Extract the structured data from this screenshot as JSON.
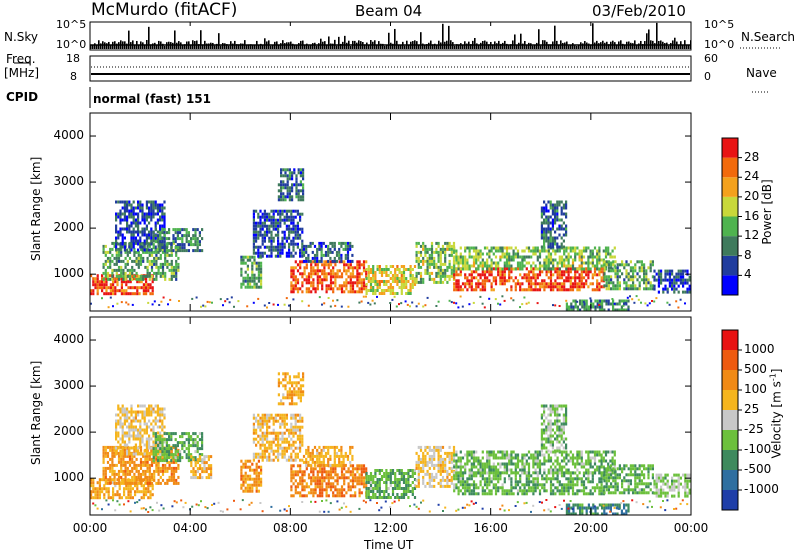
{
  "header": {
    "station": "McMurdo (fitACF)",
    "beam": "Beam 04",
    "date": "03/Feb/2010"
  },
  "noise_panel": {
    "left_label": "N.Sky",
    "right_label": "N.Search",
    "ticks": [
      "10^5",
      "10^0"
    ],
    "log_scale": true
  },
  "freq_panel": {
    "left_label_line1": "Freq.",
    "left_label_line2": "[MHz]",
    "right_label": "Nave",
    "left_ticks": [
      18,
      8
    ],
    "right_ticks": [
      60,
      0
    ]
  },
  "cpid_panel": {
    "label": "CPID",
    "value": "normal (fast) 151"
  },
  "power_panel": {
    "ylabel": "Slant Range [km]",
    "y_ticks": [
      1000,
      2000,
      3000,
      4000
    ],
    "colorbar_label": "Power [dB]",
    "colorbar_ticks": [
      "28",
      "24",
      "20",
      "16",
      "12",
      "8",
      "4"
    ],
    "colors": [
      "#0000ff",
      "#203c9e",
      "#3f7a5c",
      "#4fb34f",
      "#c8d83a",
      "#f4a11c",
      "#f26a0c",
      "#e81414"
    ]
  },
  "velocity_panel": {
    "ylabel": "Slant Range [km]",
    "y_ticks": [
      1000,
      2000,
      3000,
      4000
    ],
    "colorbar_label": "Velocity [m s",
    "colorbar_unit_exp": "-1",
    "colorbar_label_end": "]",
    "colorbar_ticks": [
      "1000",
      "500",
      "100",
      "25",
      "-25",
      "-100",
      "-500",
      "-1000"
    ],
    "colors": [
      "#1f3ea8",
      "#2f6fa0",
      "#3e8a5e",
      "#6cc03c",
      "#c8c8c8",
      "#f5b51e",
      "#f18a15",
      "#ee5a10",
      "#e81212"
    ]
  },
  "xaxis": {
    "label": "Time UT",
    "ticks": [
      "00:00",
      "04:00",
      "08:00",
      "12:00",
      "16:00",
      "20:00",
      "00:00"
    ]
  },
  "chart_data": [
    {
      "type": "heatmap",
      "title": "Power",
      "xlabel": "Time UT",
      "ylabel": "Slant Range [km]",
      "xlim_hours": [
        0,
        24
      ],
      "ylim": [
        200,
        4500
      ],
      "color_unit": "dB",
      "color_range": [
        0,
        30
      ],
      "bands": [
        {
          "t_start": 0.0,
          "t_end": 2.5,
          "r_low": 600,
          "r_high": 1000,
          "value": 26
        },
        {
          "t_start": 0.5,
          "t_end": 3.5,
          "r_low": 900,
          "r_high": 1700,
          "value": 12
        },
        {
          "t_start": 1.0,
          "t_end": 3.0,
          "r_low": 1500,
          "r_high": 2600,
          "value": 6
        },
        {
          "t_start": 2.5,
          "t_end": 4.5,
          "r_low": 1500,
          "r_high": 2000,
          "value": 10
        },
        {
          "t_start": 6.0,
          "t_end": 6.8,
          "r_low": 700,
          "r_high": 1400,
          "value": 12
        },
        {
          "t_start": 6.5,
          "t_end": 8.5,
          "r_low": 1400,
          "r_high": 2400,
          "value": 6
        },
        {
          "t_start": 7.5,
          "t_end": 8.5,
          "r_low": 2600,
          "r_high": 3300,
          "value": 8
        },
        {
          "t_start": 8.0,
          "t_end": 11.0,
          "r_low": 600,
          "r_high": 1300,
          "value": 25
        },
        {
          "t_start": 8.5,
          "t_end": 10.5,
          "r_low": 1300,
          "r_high": 1700,
          "value": 7
        },
        {
          "t_start": 11.0,
          "t_end": 13.0,
          "r_low": 600,
          "r_high": 1200,
          "value": 18
        },
        {
          "t_start": 13.0,
          "t_end": 14.5,
          "r_low": 800,
          "r_high": 1700,
          "value": 14
        },
        {
          "t_start": 14.5,
          "t_end": 20.5,
          "r_low": 650,
          "r_high": 1150,
          "value": 26
        },
        {
          "t_start": 14.5,
          "t_end": 21.0,
          "r_low": 1100,
          "r_high": 1600,
          "value": 14
        },
        {
          "t_start": 18.0,
          "t_end": 19.0,
          "r_low": 1600,
          "r_high": 2600,
          "value": 8
        },
        {
          "t_start": 20.5,
          "t_end": 22.5,
          "r_low": 700,
          "r_high": 1300,
          "value": 12
        },
        {
          "t_start": 22.5,
          "t_end": 24.0,
          "r_low": 600,
          "r_high": 1100,
          "value": 6
        },
        {
          "t_start": 19.0,
          "t_end": 21.5,
          "r_low": 250,
          "r_high": 450,
          "value": 10
        }
      ]
    },
    {
      "type": "heatmap",
      "title": "Velocity",
      "xlabel": "Time UT",
      "ylabel": "Slant Range [km]",
      "xlim_hours": [
        0,
        24
      ],
      "ylim": [
        200,
        4500
      ],
      "color_unit": "m s^-1",
      "color_range": [
        -1000,
        1000
      ],
      "bands": [
        {
          "t_start": 0.0,
          "t_end": 2.5,
          "r_low": 600,
          "r_high": 1000,
          "value": 300
        },
        {
          "t_start": 0.5,
          "t_end": 3.5,
          "r_low": 900,
          "r_high": 1700,
          "value": 400
        },
        {
          "t_start": 1.0,
          "t_end": 3.0,
          "r_low": 1500,
          "r_high": 2600,
          "value": 150
        },
        {
          "t_start": 2.5,
          "t_end": 4.5,
          "r_low": 1400,
          "r_high": 2000,
          "value": -300
        },
        {
          "t_start": 4.0,
          "t_end": 4.8,
          "r_low": 1000,
          "r_high": 1500,
          "value": 200
        },
        {
          "t_start": 6.0,
          "t_end": 6.8,
          "r_low": 700,
          "r_high": 1400,
          "value": 400
        },
        {
          "t_start": 6.5,
          "t_end": 8.5,
          "r_low": 1400,
          "r_high": 2400,
          "value": 200
        },
        {
          "t_start": 7.5,
          "t_end": 8.5,
          "r_low": 2600,
          "r_high": 3300,
          "value": 300
        },
        {
          "t_start": 8.0,
          "t_end": 11.0,
          "r_low": 600,
          "r_high": 1300,
          "value": 500
        },
        {
          "t_start": 8.5,
          "t_end": 10.5,
          "r_low": 1300,
          "r_high": 1700,
          "value": 300
        },
        {
          "t_start": 11.0,
          "t_end": 13.0,
          "r_low": 600,
          "r_high": 1200,
          "value": -300
        },
        {
          "t_start": 13.0,
          "t_end": 14.5,
          "r_low": 800,
          "r_high": 1700,
          "value": 150
        },
        {
          "t_start": 14.5,
          "t_end": 20.5,
          "r_low": 650,
          "r_high": 1150,
          "value": -300
        },
        {
          "t_start": 14.5,
          "t_end": 21.0,
          "r_low": 1100,
          "r_high": 1600,
          "value": -250
        },
        {
          "t_start": 18.0,
          "t_end": 19.0,
          "r_low": 1600,
          "r_high": 2600,
          "value": -200
        },
        {
          "t_start": 20.5,
          "t_end": 22.5,
          "r_low": 700,
          "r_high": 1300,
          "value": -300
        },
        {
          "t_start": 22.5,
          "t_end": 24.0,
          "r_low": 600,
          "r_high": 1100,
          "value": -150
        },
        {
          "t_start": 19.0,
          "t_end": 21.5,
          "r_low": 250,
          "r_high": 450,
          "value": -500
        }
      ]
    }
  ]
}
